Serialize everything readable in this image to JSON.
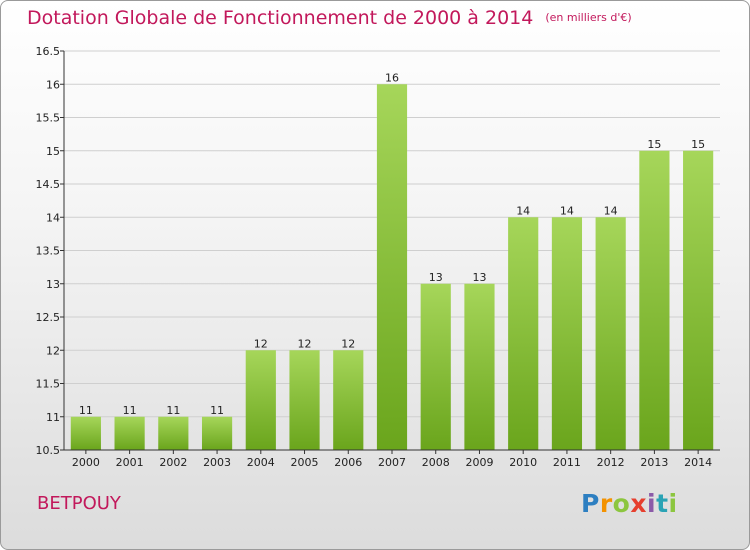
{
  "header": {
    "title": "Dotation Globale de Fonctionnement de 2000 à 2014",
    "unit": "(en milliers d'€)"
  },
  "commune": "BETPOUY",
  "brand": {
    "letters": [
      "P",
      "r",
      "o",
      "x",
      "i",
      "t",
      "i"
    ]
  },
  "chart_data": {
    "type": "bar",
    "title": "Dotation Globale de Fonctionnement de 2000 à 2014",
    "subtitle": "(en milliers d'€)",
    "categories": [
      "2000",
      "2001",
      "2002",
      "2003",
      "2004",
      "2005",
      "2006",
      "2007",
      "2008",
      "2009",
      "2010",
      "2011",
      "2012",
      "2013",
      "2014"
    ],
    "values": [
      11,
      11,
      11,
      11,
      12,
      12,
      12,
      16,
      13,
      13,
      14,
      14,
      14,
      15,
      15
    ],
    "data_labels": [
      "11",
      "11",
      "11",
      "11",
      "12",
      "12",
      "12",
      "16",
      "13",
      "13",
      "14",
      "14",
      "14",
      "15",
      "15"
    ],
    "ylim": [
      10.5,
      16.5
    ],
    "yticks": [
      10.5,
      11,
      11.5,
      12,
      12.5,
      13,
      13.5,
      14,
      14.5,
      15,
      15.5,
      16,
      16.5
    ],
    "ytick_labels": [
      "10.5",
      "11",
      "11.5",
      "12",
      "12.5",
      "13",
      "13.5",
      "14",
      "14.5",
      "15",
      "15.5",
      "16",
      "16.5"
    ],
    "grid": true,
    "colors": {
      "bar_light": "#a6d65a",
      "bar_dark": "#6aa51c",
      "grid": "#cfcfcf",
      "axis": "#333333",
      "accent": "#c2185b"
    }
  }
}
